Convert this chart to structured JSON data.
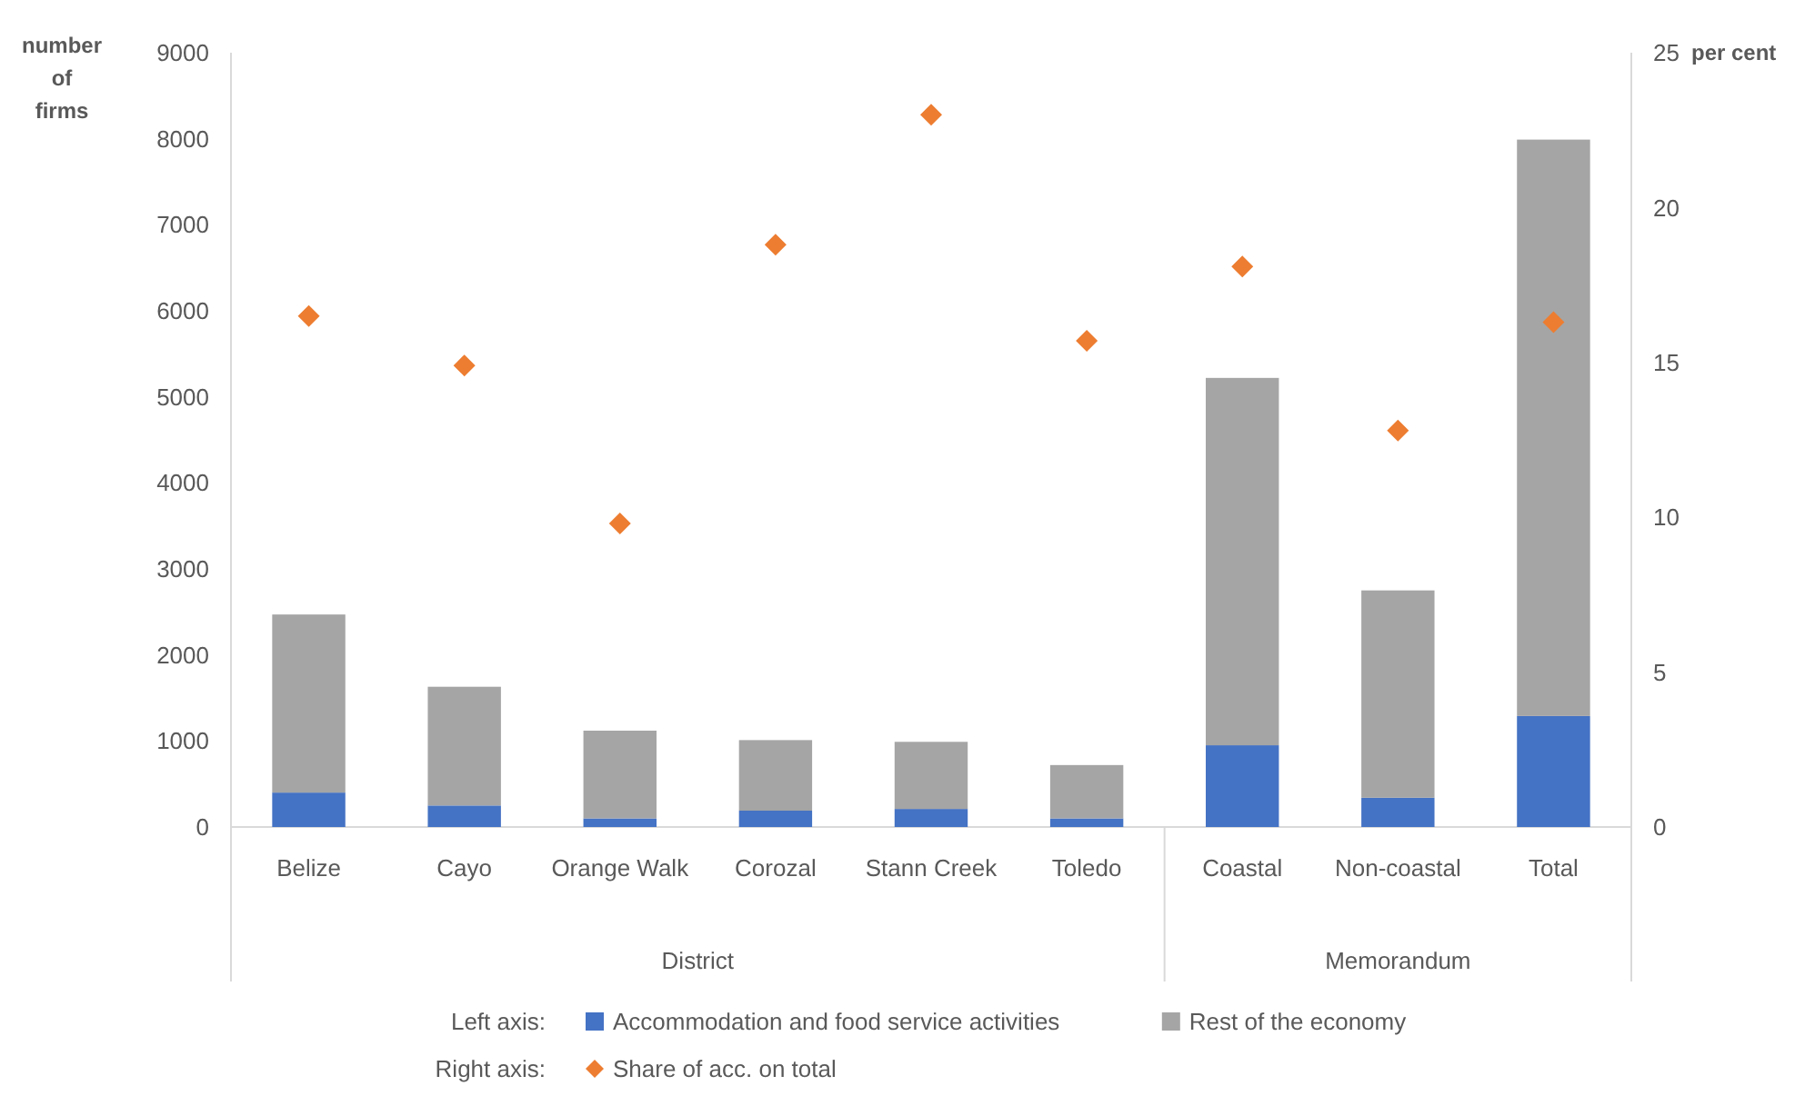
{
  "chart_data": {
    "type": "bar",
    "stacked": true,
    "categories": [
      "Belize",
      "Cayo",
      "Orange Walk",
      "Corozal",
      "Stann Creek",
      "Toledo",
      "Coastal",
      "Non-coastal",
      "Total"
    ],
    "series": [
      {
        "name": "Accommodation and food service activities",
        "color": "#4472c4",
        "values": [
          400,
          250,
          100,
          190,
          210,
          100,
          950,
          340,
          1290
        ]
      },
      {
        "name": "Rest of the economy",
        "color": "#a5a5a5",
        "values": [
          2070,
          1380,
          1020,
          820,
          780,
          620,
          4270,
          2410,
          6700
        ]
      },
      {
        "name": "Share of acc. on total",
        "type": "scatter",
        "axis": "y2",
        "marker": "diamond",
        "color": "#ed7d31",
        "values": [
          16.5,
          14.9,
          9.8,
          18.8,
          23.0,
          15.7,
          18.1,
          12.8,
          16.3
        ]
      }
    ],
    "ylabel": "number of firms",
    "y2label": "per cent",
    "ylim": [
      0,
      9000
    ],
    "yticks": [
      0,
      1000,
      2000,
      3000,
      4000,
      5000,
      6000,
      7000,
      8000,
      9000
    ],
    "y2lim": [
      0,
      25
    ],
    "y2ticks": [
      0,
      5,
      10,
      15,
      20,
      25
    ],
    "annotations": [
      "District",
      "Memorandum",
      "Left axis:",
      "Right axis:"
    ],
    "legend": "bottom",
    "grid": false
  }
}
